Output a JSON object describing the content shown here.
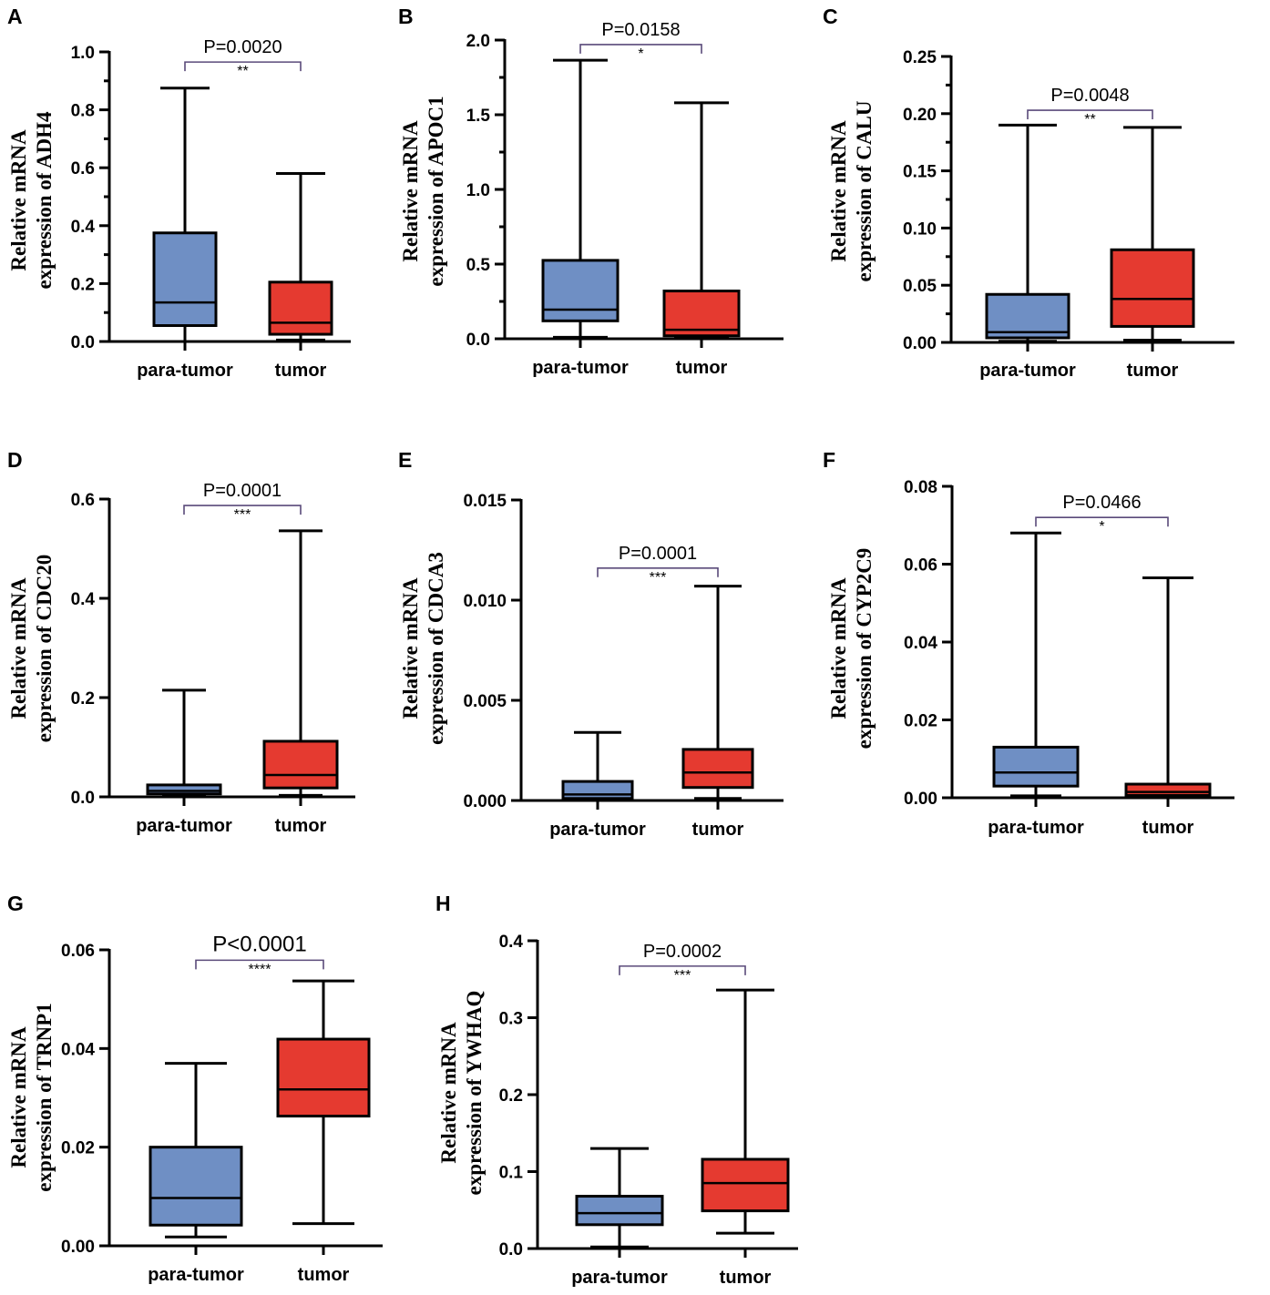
{
  "colors": {
    "para_tumor": "#6f8fc4",
    "tumor": "#e53a30"
  },
  "chart_data": [
    {
      "panel": "A",
      "type": "box",
      "ylabel": [
        "Relative mRNA",
        "expression of ADH4"
      ],
      "categories": [
        "para-tumor",
        "tumor"
      ],
      "ylim": [
        0,
        1.0
      ],
      "yticks": [
        {
          "v": 0,
          "label": "0.0"
        },
        {
          "v": 0.2,
          "label": "0.2"
        },
        {
          "v": 0.4,
          "label": "0.4"
        },
        {
          "v": 0.6,
          "label": "0.6"
        },
        {
          "v": 0.8,
          "label": "0.8"
        },
        {
          "v": 1.0,
          "label": "1.0"
        }
      ],
      "minorTicks": true,
      "boxes": [
        {
          "min": 0.0,
          "q1": 0.055,
          "median": 0.135,
          "q3": 0.375,
          "max": 0.875
        },
        {
          "min": 0.005,
          "q1": 0.025,
          "median": 0.065,
          "q3": 0.205,
          "max": 0.58
        }
      ],
      "pvalue": "P=0.0020",
      "stars": "**",
      "bracket_y": 0.965
    },
    {
      "panel": "B",
      "type": "box",
      "ylabel": [
        "Relative mRNA",
        "expression of APOC1"
      ],
      "categories": [
        "para-tumor",
        "tumor"
      ],
      "ylim": [
        0,
        2.0
      ],
      "yticks": [
        {
          "v": 0,
          "label": "0.0"
        },
        {
          "v": 0.5,
          "label": "0.5"
        },
        {
          "v": 1.0,
          "label": "1.0"
        },
        {
          "v": 1.5,
          "label": "1.5"
        },
        {
          "v": 2.0,
          "label": "2.0"
        }
      ],
      "minorTicks": true,
      "boxes": [
        {
          "min": 0.01,
          "q1": 0.12,
          "median": 0.195,
          "q3": 0.525,
          "max": 1.865
        },
        {
          "min": 0.005,
          "q1": 0.02,
          "median": 0.06,
          "q3": 0.32,
          "max": 1.58
        }
      ],
      "pvalue": "P=0.0158",
      "stars": "*",
      "bracket_y": 1.97
    },
    {
      "panel": "C",
      "type": "box",
      "ylabel": [
        "Relative mRNA",
        "expression of CALU"
      ],
      "categories": [
        "para-tumor",
        "tumor"
      ],
      "ylim": [
        0,
        0.25
      ],
      "yticks": [
        {
          "v": 0,
          "label": "0.00"
        },
        {
          "v": 0.05,
          "label": "0.05"
        },
        {
          "v": 0.1,
          "label": "0.10"
        },
        {
          "v": 0.15,
          "label": "0.15"
        },
        {
          "v": 0.2,
          "label": "0.20"
        },
        {
          "v": 0.25,
          "label": "0.25"
        }
      ],
      "minorTicks": true,
      "boxes": [
        {
          "min": 0.001,
          "q1": 0.004,
          "median": 0.009,
          "q3": 0.042,
          "max": 0.19
        },
        {
          "min": 0.002,
          "q1": 0.014,
          "median": 0.038,
          "q3": 0.081,
          "max": 0.188
        }
      ],
      "pvalue": "P=0.0048",
      "stars": "**",
      "bracket_y": 0.203
    },
    {
      "panel": "D",
      "type": "box",
      "ylabel": [
        "Relative mRNA",
        "expression of CDC20"
      ],
      "categories": [
        "para-tumor",
        "tumor"
      ],
      "ylim": [
        0,
        0.6
      ],
      "yticks": [
        {
          "v": 0,
          "label": "0.0"
        },
        {
          "v": 0.2,
          "label": "0.2"
        },
        {
          "v": 0.4,
          "label": "0.4"
        },
        {
          "v": 0.6,
          "label": "0.6"
        }
      ],
      "minorTicks": false,
      "boxes": [
        {
          "min": 0.001,
          "q1": 0.006,
          "median": 0.012,
          "q3": 0.024,
          "max": 0.215
        },
        {
          "min": 0.003,
          "q1": 0.018,
          "median": 0.044,
          "q3": 0.112,
          "max": 0.536
        }
      ],
      "pvalue": "P=0.0001",
      "stars": "***",
      "bracket_y": 0.587
    },
    {
      "panel": "E",
      "type": "box",
      "ylabel": [
        "Relative mRNA",
        "expression of CDCA3"
      ],
      "categories": [
        "para-tumor",
        "tumor"
      ],
      "ylim": [
        0,
        0.015
      ],
      "yticks": [
        {
          "v": 0,
          "label": "0.000"
        },
        {
          "v": 0.005,
          "label": "0.005"
        },
        {
          "v": 0.01,
          "label": "0.010"
        },
        {
          "v": 0.015,
          "label": "0.015"
        }
      ],
      "minorTicks": false,
      "boxes": [
        {
          "min": 1e-05,
          "q1": 0.0001,
          "median": 0.0003,
          "q3": 0.00095,
          "max": 0.0034
        },
        {
          "min": 0.0001,
          "q1": 0.00065,
          "median": 0.0014,
          "q3": 0.00255,
          "max": 0.0107
        }
      ],
      "pvalue": "P=0.0001",
      "stars": "***",
      "bracket_y": 0.0116
    },
    {
      "panel": "F",
      "type": "box",
      "ylabel": [
        "Relative mRNA",
        "expression of CYP2C9"
      ],
      "categories": [
        "para-tumor",
        "tumor"
      ],
      "ylim": [
        0,
        0.08
      ],
      "yticks": [
        {
          "v": 0,
          "label": "0.00"
        },
        {
          "v": 0.02,
          "label": "0.02"
        },
        {
          "v": 0.04,
          "label": "0.04"
        },
        {
          "v": 0.06,
          "label": "0.06"
        },
        {
          "v": 0.08,
          "label": "0.08"
        }
      ],
      "minorTicks": false,
      "boxes": [
        {
          "min": 0.0005,
          "q1": 0.003,
          "median": 0.0065,
          "q3": 0.013,
          "max": 0.068
        },
        {
          "min": 0.0001,
          "q1": 0.0006,
          "median": 0.0015,
          "q3": 0.0035,
          "max": 0.0565
        }
      ],
      "pvalue": "P=0.0466",
      "stars": "*",
      "bracket_y": 0.072
    },
    {
      "panel": "G",
      "type": "box",
      "ylabel": [
        "Relative mRNA",
        "expression of TRNP1"
      ],
      "categories": [
        "para-tumor",
        "tumor"
      ],
      "ylim": [
        0,
        0.06
      ],
      "yticks": [
        {
          "v": 0,
          "label": "0.00"
        },
        {
          "v": 0.02,
          "label": "0.02"
        },
        {
          "v": 0.04,
          "label": "0.04"
        },
        {
          "v": 0.06,
          "label": "0.06"
        }
      ],
      "minorTicks": false,
      "boxes": [
        {
          "min": 0.0018,
          "q1": 0.0042,
          "median": 0.0097,
          "q3": 0.02,
          "max": 0.037
        },
        {
          "min": 0.0045,
          "q1": 0.0263,
          "median": 0.0317,
          "q3": 0.0419,
          "max": 0.0537
        }
      ],
      "pvalue": "P<0.0001",
      "stars": "****",
      "bracket_y": 0.0579,
      "bigP": true
    },
    {
      "panel": "H",
      "type": "box",
      "ylabel": [
        "Relative mRNA",
        "expression of YWHAQ"
      ],
      "categories": [
        "para-tumor",
        "tumor"
      ],
      "ylim": [
        0,
        0.4
      ],
      "yticks": [
        {
          "v": 0,
          "label": "0.0"
        },
        {
          "v": 0.1,
          "label": "0.1"
        },
        {
          "v": 0.2,
          "label": "0.2"
        },
        {
          "v": 0.3,
          "label": "0.3"
        },
        {
          "v": 0.4,
          "label": "0.4"
        }
      ],
      "minorTicks": false,
      "boxes": [
        {
          "min": 0.002,
          "q1": 0.031,
          "median": 0.046,
          "q3": 0.068,
          "max": 0.13
        },
        {
          "min": 0.02,
          "q1": 0.049,
          "median": 0.085,
          "q3": 0.116,
          "max": 0.336
        }
      ],
      "pvalue": "P=0.0002",
      "stars": "***",
      "bracket_y": 0.367
    }
  ]
}
